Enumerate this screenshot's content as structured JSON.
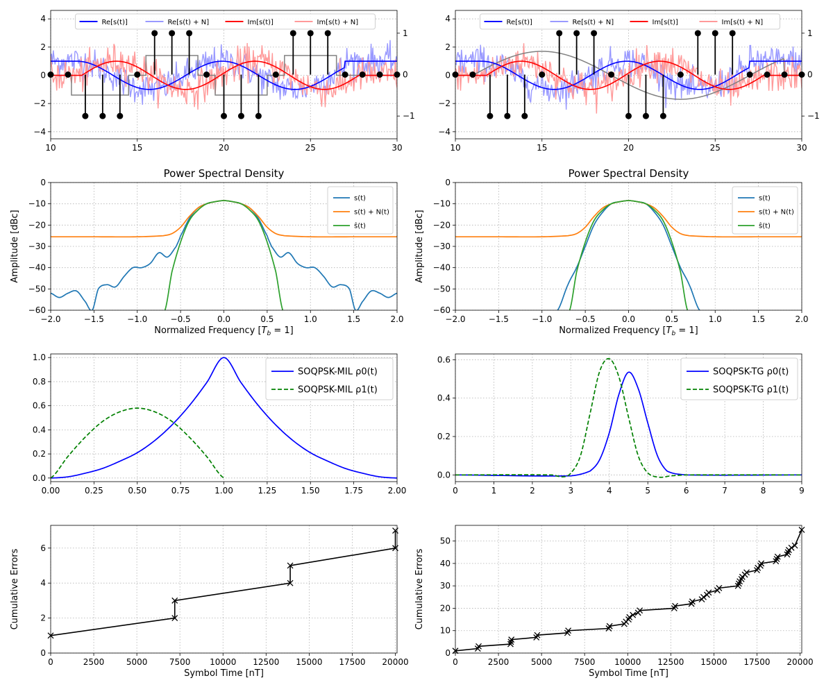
{
  "chart_data": [
    {
      "type": "line",
      "panel": "time-domain-left",
      "xlim": [
        10,
        30
      ],
      "ylim": [
        -4.5,
        4.6
      ],
      "y2lim": [
        -1.55,
        1.55
      ],
      "xticks": [
        "10",
        "15",
        "20",
        "25",
        "30"
      ],
      "yticks": [
        "−4",
        "−2",
        "0",
        "2",
        "4"
      ],
      "y2ticks": [
        "−1",
        "0",
        "1"
      ],
      "grid": true,
      "legend_position": "top-center",
      "legend": [
        "Re[s(t)]",
        "Re[s(t) + N]",
        "Im[s(t)]",
        "Im[s(t) + N]"
      ],
      "series_colors": [
        "#0000ff",
        "#9999ff",
        "#ff0000",
        "#ff9999",
        "#808080"
      ],
      "stems_x": [
        10,
        11,
        12,
        13,
        14,
        15,
        16,
        17,
        18,
        19,
        20,
        21,
        22,
        23,
        24,
        25,
        26,
        27,
        28,
        29,
        30
      ],
      "stems_y": [
        0,
        0,
        -1,
        -1,
        -1,
        0,
        1,
        1,
        1,
        0,
        -1,
        -1,
        -1,
        0,
        1,
        1,
        1,
        0,
        0,
        0,
        0
      ]
    },
    {
      "type": "line",
      "panel": "time-domain-right",
      "xlim": [
        10,
        30
      ],
      "ylim": [
        -4.5,
        4.6
      ],
      "y2lim": [
        -1.55,
        1.55
      ],
      "xticks": [
        "10",
        "15",
        "20",
        "25",
        "30"
      ],
      "yticks": [
        "−4",
        "−2",
        "0",
        "2",
        "4"
      ],
      "y2ticks": [
        "−1",
        "0",
        "1"
      ],
      "grid": true,
      "legend_position": "top-center",
      "legend": [
        "Re[s(t)]",
        "Re[s(t) + N]",
        "Im[s(t)]",
        "Im[s(t) + N]"
      ],
      "stems_x": [
        10,
        11,
        12,
        13,
        14,
        15,
        16,
        17,
        18,
        19,
        20,
        21,
        22,
        23,
        24,
        25,
        26,
        27,
        28,
        29,
        30
      ],
      "stems_y": [
        0,
        0,
        -1,
        -1,
        -1,
        0,
        1,
        1,
        1,
        0,
        -1,
        -1,
        -1,
        0,
        1,
        1,
        1,
        0,
        0,
        0,
        0
      ]
    },
    {
      "type": "line",
      "panel": "psd-left",
      "title": "Power Spectral Density",
      "xlabel": "Normalized Frequency [T_b = 1]",
      "ylabel": "Amplitude [dBc]",
      "xlim": [
        -2,
        2
      ],
      "ylim": [
        -60,
        0
      ],
      "xticks": [
        "−2.0",
        "−1.5",
        "−1.0",
        "−0.5",
        "0.0",
        "0.5",
        "1.0",
        "1.5",
        "2.0"
      ],
      "yticks": [
        "−60",
        "−50",
        "−40",
        "−30",
        "−20",
        "−10",
        "0"
      ],
      "grid": true,
      "legend_position": "top-right",
      "series": [
        {
          "name": "s(t)",
          "color": "#1f77b4",
          "x": [
            -2,
            -1.9,
            -1.8,
            -1.7,
            -1.6,
            -1.52,
            -1.45,
            -1.35,
            -1.25,
            -1.15,
            -1.05,
            -0.95,
            -0.85,
            -0.75,
            -0.65,
            -0.55,
            -0.5,
            -0.4,
            -0.3,
            -0.2,
            -0.1,
            0,
            0.1,
            0.2,
            0.3,
            0.4,
            0.5,
            0.55,
            0.65,
            0.75,
            0.85,
            0.95,
            1.05,
            1.15,
            1.25,
            1.35,
            1.45,
            1.52,
            1.6,
            1.7,
            1.8,
            1.9,
            2
          ],
          "y": [
            -52,
            -54,
            -52,
            -51,
            -56,
            -60,
            -50,
            -48,
            -49,
            -44,
            -40,
            -40,
            -38,
            -33,
            -35,
            -30,
            -25,
            -17,
            -12,
            -10,
            -9,
            -8.5,
            -9,
            -10,
            -12,
            -17,
            -25,
            -30,
            -35,
            -33,
            -38,
            -40,
            -40,
            -44,
            -49,
            -48,
            -50,
            -60,
            -56,
            -51,
            -52,
            -54,
            -52
          ]
        },
        {
          "name": "s(t) + N(t)",
          "color": "#ff7f0e",
          "x": [
            -2,
            -1.5,
            -1,
            -0.7,
            -0.6,
            -0.5,
            -0.4,
            -0.3,
            -0.2,
            -0.1,
            0,
            0.1,
            0.2,
            0.3,
            0.4,
            0.5,
            0.6,
            0.7,
            1,
            1.5,
            2
          ],
          "y": [
            -25.5,
            -25.5,
            -25.5,
            -25,
            -24,
            -21,
            -16,
            -12,
            -10,
            -9,
            -8.5,
            -9,
            -10,
            -12,
            -16,
            -21,
            -24,
            -25,
            -25.5,
            -25.5,
            -25.5
          ]
        },
        {
          "name": "ŝ(t)",
          "color": "#2ca02c",
          "x": [
            -0.68,
            -0.6,
            -0.5,
            -0.4,
            -0.3,
            -0.2,
            -0.1,
            0,
            0.1,
            0.2,
            0.3,
            0.4,
            0.5,
            0.6,
            0.68
          ],
          "y": [
            -60,
            -42,
            -28,
            -18,
            -13,
            -10,
            -9,
            -8.5,
            -9,
            -10,
            -13,
            -18,
            -28,
            -42,
            -60
          ]
        }
      ]
    },
    {
      "type": "line",
      "panel": "psd-right",
      "title": "Power Spectral Density",
      "xlabel": "Normalized Frequency [T_b = 1]",
      "ylabel": "Amplitude [dBc]",
      "xlim": [
        -2,
        2
      ],
      "ylim": [
        -60,
        0
      ],
      "xticks": [
        "−2.0",
        "−1.5",
        "−1.0",
        "−0.5",
        "0.0",
        "0.5",
        "1.0",
        "1.5",
        "2.0"
      ],
      "yticks": [
        "−60",
        "−50",
        "−40",
        "−30",
        "−20",
        "−10",
        "0"
      ],
      "grid": true,
      "legend_position": "top-right",
      "series": [
        {
          "name": "s(t)",
          "color": "#1f77b4",
          "x": [
            -0.82,
            -0.7,
            -0.6,
            -0.5,
            -0.4,
            -0.3,
            -0.2,
            -0.1,
            0,
            0.1,
            0.2,
            0.3,
            0.4,
            0.5,
            0.6,
            0.7,
            0.82
          ],
          "y": [
            -60,
            -48,
            -40,
            -30,
            -20,
            -14,
            -10,
            -9,
            -8.5,
            -9,
            -10,
            -14,
            -20,
            -30,
            -40,
            -48,
            -60
          ]
        },
        {
          "name": "s(t) + N(t)",
          "color": "#ff7f0e",
          "x": [
            -2,
            -1.5,
            -1,
            -0.7,
            -0.6,
            -0.5,
            -0.4,
            -0.3,
            -0.2,
            -0.1,
            0,
            0.1,
            0.2,
            0.3,
            0.4,
            0.5,
            0.6,
            0.7,
            1,
            1.5,
            2
          ],
          "y": [
            -25.5,
            -25.5,
            -25.5,
            -25,
            -24,
            -21,
            -16,
            -12,
            -10,
            -9,
            -8.5,
            -9,
            -10,
            -12,
            -16,
            -21,
            -24,
            -25,
            -25.5,
            -25.5,
            -25.5
          ]
        },
        {
          "name": "ŝ(t)",
          "color": "#2ca02c",
          "x": [
            -0.68,
            -0.6,
            -0.5,
            -0.4,
            -0.3,
            -0.2,
            -0.1,
            0,
            0.1,
            0.2,
            0.3,
            0.4,
            0.5,
            0.6,
            0.68
          ],
          "y": [
            -60,
            -42,
            -28,
            -18,
            -13,
            -10,
            -9,
            -8.5,
            -9,
            -10,
            -13,
            -18,
            -28,
            -42,
            -60
          ]
        }
      ]
    },
    {
      "type": "line",
      "panel": "pulse-left",
      "xlim": [
        0,
        2
      ],
      "ylim": [
        -0.03,
        1.03
      ],
      "xticks": [
        "0.00",
        "0.25",
        "0.50",
        "0.75",
        "1.00",
        "1.25",
        "1.50",
        "1.75",
        "2.00"
      ],
      "yticks": [
        "0.0",
        "0.2",
        "0.4",
        "0.6",
        "0.8",
        "1.0"
      ],
      "grid": true,
      "legend_position": "top-right",
      "series": [
        {
          "name": "SOQPSK-MIL ρ0(t)",
          "color": "#0000ff",
          "dash": "solid",
          "x": [
            0,
            0.1,
            0.2,
            0.3,
            0.4,
            0.5,
            0.6,
            0.7,
            0.8,
            0.9,
            1,
            1.1,
            1.2,
            1.3,
            1.4,
            1.5,
            1.6,
            1.7,
            1.8,
            1.9,
            2
          ],
          "y": [
            0,
            0.01,
            0.04,
            0.08,
            0.14,
            0.21,
            0.31,
            0.44,
            0.6,
            0.79,
            1,
            0.79,
            0.6,
            0.44,
            0.31,
            0.21,
            0.14,
            0.08,
            0.04,
            0.01,
            0
          ]
        },
        {
          "name": "SOQPSK-MIL ρ1(t)",
          "color": "#008000",
          "dash": "dashed",
          "x": [
            0,
            0.1,
            0.2,
            0.3,
            0.4,
            0.5,
            0.6,
            0.7,
            0.8,
            0.9,
            1
          ],
          "y": [
            0,
            0.18,
            0.34,
            0.47,
            0.55,
            0.58,
            0.55,
            0.47,
            0.34,
            0.18,
            0
          ]
        }
      ]
    },
    {
      "type": "line",
      "panel": "pulse-right",
      "xlim": [
        0,
        9
      ],
      "ylim": [
        -0.035,
        0.63
      ],
      "xticks": [
        "0",
        "1",
        "2",
        "3",
        "4",
        "5",
        "6",
        "7",
        "8",
        "9"
      ],
      "yticks": [
        "0.0",
        "0.2",
        "0.4",
        "0.6"
      ],
      "grid": true,
      "legend_position": "top-right",
      "series": [
        {
          "name": "SOQPSK-TG ρ0(t)",
          "color": "#0000ff",
          "dash": "solid",
          "x": [
            0,
            3,
            3.5,
            3.75,
            4,
            4.25,
            4.5,
            4.75,
            5,
            5.25,
            5.5,
            6,
            9
          ],
          "y": [
            0,
            -0.005,
            0.02,
            0.08,
            0.22,
            0.42,
            0.535,
            0.45,
            0.27,
            0.1,
            0.02,
            0,
            0
          ]
        },
        {
          "name": "SOQPSK-TG ρ1(t)",
          "color": "#008000",
          "dash": "dashed",
          "x": [
            0,
            2.5,
            2.8,
            3,
            3.25,
            3.5,
            3.75,
            4,
            4.25,
            4.5,
            4.75,
            5,
            5.3,
            5.6,
            6,
            9
          ],
          "y": [
            0,
            0,
            -0.01,
            0.01,
            0.1,
            0.32,
            0.54,
            0.605,
            0.51,
            0.3,
            0.1,
            0.01,
            -0.012,
            -0.005,
            0,
            0
          ]
        }
      ]
    },
    {
      "type": "line",
      "panel": "errors-left",
      "xlabel": "Symbol Time [nT]",
      "ylabel": "Cumulative Errors",
      "xlim": [
        0,
        20100
      ],
      "ylim": [
        0,
        7.3
      ],
      "xticks": [
        "0",
        "2500",
        "5000",
        "7500",
        "10000",
        "12500",
        "15000",
        "17500",
        "20000"
      ],
      "yticks": [
        "0",
        "2",
        "4",
        "6"
      ],
      "grid": true,
      "x": [
        0,
        7200,
        7200,
        13900,
        13900,
        20000,
        20000
      ],
      "y": [
        1,
        2,
        3,
        4,
        5,
        6,
        7
      ]
    },
    {
      "type": "line",
      "panel": "errors-right",
      "xlabel": "Symbol Time [nT]",
      "ylabel": "Cumulative Errors",
      "xlim": [
        0,
        20100
      ],
      "ylim": [
        0,
        57
      ],
      "xticks": [
        "0",
        "2500",
        "5000",
        "7500",
        "10000",
        "12500",
        "15000",
        "17500",
        "20000"
      ],
      "yticks": [
        "0",
        "10",
        "20",
        "30",
        "40",
        "50"
      ],
      "grid": true,
      "x": [
        0,
        1300,
        1350,
        3200,
        3220,
        3250,
        4700,
        4750,
        6500,
        6550,
        8900,
        8950,
        9800,
        9900,
        10050,
        10100,
        10300,
        10600,
        10700,
        12700,
        12750,
        13700,
        13750,
        14300,
        14400,
        14600,
        14700,
        15200,
        15300,
        16400,
        16450,
        16500,
        16600,
        16650,
        16800,
        16900,
        17500,
        17550,
        17700,
        17750,
        18600,
        18650,
        18700,
        19250,
        19300,
        19350,
        19500,
        19700,
        20100
      ],
      "y": [
        1,
        2,
        3,
        4,
        5,
        6,
        7,
        8,
        9,
        10,
        11,
        12,
        13,
        14,
        15,
        16,
        17,
        18,
        19,
        20,
        21,
        22,
        23,
        24,
        25,
        26,
        27,
        28,
        29,
        30,
        31,
        32,
        33,
        34,
        35,
        36,
        37,
        38,
        39,
        40,
        41,
        42,
        43,
        44,
        45,
        46,
        47,
        48,
        55
      ]
    }
  ]
}
